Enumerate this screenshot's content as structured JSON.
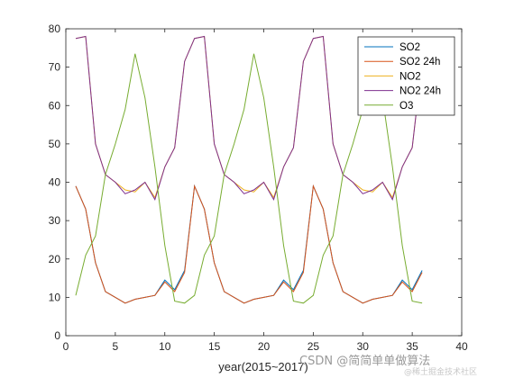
{
  "chart_data": {
    "type": "line",
    "xlabel": "year(2015~2017)",
    "ylabel": "",
    "title": "",
    "xlim": [
      0,
      40
    ],
    "ylim": [
      0,
      80
    ],
    "xticks": [
      0,
      5,
      10,
      15,
      20,
      25,
      30,
      35,
      40
    ],
    "yticks": [
      0,
      10,
      20,
      30,
      40,
      50,
      60,
      70,
      80
    ],
    "grid": false,
    "legend_position": "top-right",
    "x": [
      1,
      2,
      3,
      4,
      5,
      6,
      7,
      8,
      9,
      10,
      11,
      12,
      13,
      14,
      15,
      16,
      17,
      18,
      19,
      20,
      21,
      22,
      23,
      24,
      25,
      26,
      27,
      28,
      29,
      30,
      31,
      32,
      33,
      34,
      35,
      36
    ],
    "series": [
      {
        "name": "SO2",
        "color": "#0072BD",
        "values": [
          39,
          33,
          19,
          11.5,
          10,
          8.5,
          9.5,
          10,
          10.5,
          14.5,
          12,
          17,
          39,
          33,
          19,
          11.5,
          10,
          8.5,
          9.5,
          10,
          10.5,
          14.5,
          12,
          17,
          39,
          33,
          19,
          11.5,
          10,
          8.5,
          9.5,
          10,
          10.5,
          14.5,
          12,
          17
        ]
      },
      {
        "name": "SO2 24h",
        "color": "#D95319",
        "values": [
          39,
          33,
          19,
          11.5,
          10,
          8.5,
          9.5,
          10,
          10.5,
          14,
          11.5,
          16.5,
          39,
          33,
          19,
          11.5,
          10,
          8.5,
          9.5,
          10,
          10.5,
          14,
          11.5,
          16.5,
          39,
          33,
          19,
          11.5,
          10,
          8.5,
          9.5,
          10,
          10.5,
          14,
          11.5,
          16.5
        ]
      },
      {
        "name": "NO2",
        "color": "#EDB120",
        "values": [
          77.5,
          78,
          50,
          42,
          40,
          38,
          37.5,
          40,
          36,
          44,
          49,
          71.5,
          77.5,
          78,
          50,
          42,
          40,
          38,
          37.5,
          40,
          36,
          44,
          49,
          71.5,
          77.5,
          78,
          50,
          42,
          40,
          38,
          37.5,
          40,
          36,
          44,
          49,
          71.5
        ]
      },
      {
        "name": "NO2 24h",
        "color": "#7E2F8E",
        "values": [
          77.5,
          78,
          50,
          42,
          40,
          37,
          38,
          40,
          35.5,
          44,
          49,
          71.5,
          77.5,
          78,
          50,
          42,
          40,
          37,
          38,
          40,
          35.5,
          44,
          49,
          71.5,
          77.5,
          78,
          50,
          42,
          40,
          37,
          38,
          40,
          35.5,
          44,
          49,
          71.5
        ]
      },
      {
        "name": "O3",
        "color": "#77AC30",
        "values": [
          10.5,
          21,
          26,
          42,
          50,
          59,
          73.5,
          62,
          44,
          23.5,
          9,
          8.5,
          10.5,
          21,
          26,
          42,
          50,
          59,
          73.5,
          62,
          44,
          23.5,
          9,
          8.5,
          10.5,
          21,
          26,
          42,
          50,
          59,
          73.5,
          62,
          44,
          23.5,
          9,
          8.5
        ]
      }
    ]
  },
  "watermark": {
    "main": "CSDN @简简单单做算法",
    "sub": "@稀土掘金技术社区"
  }
}
